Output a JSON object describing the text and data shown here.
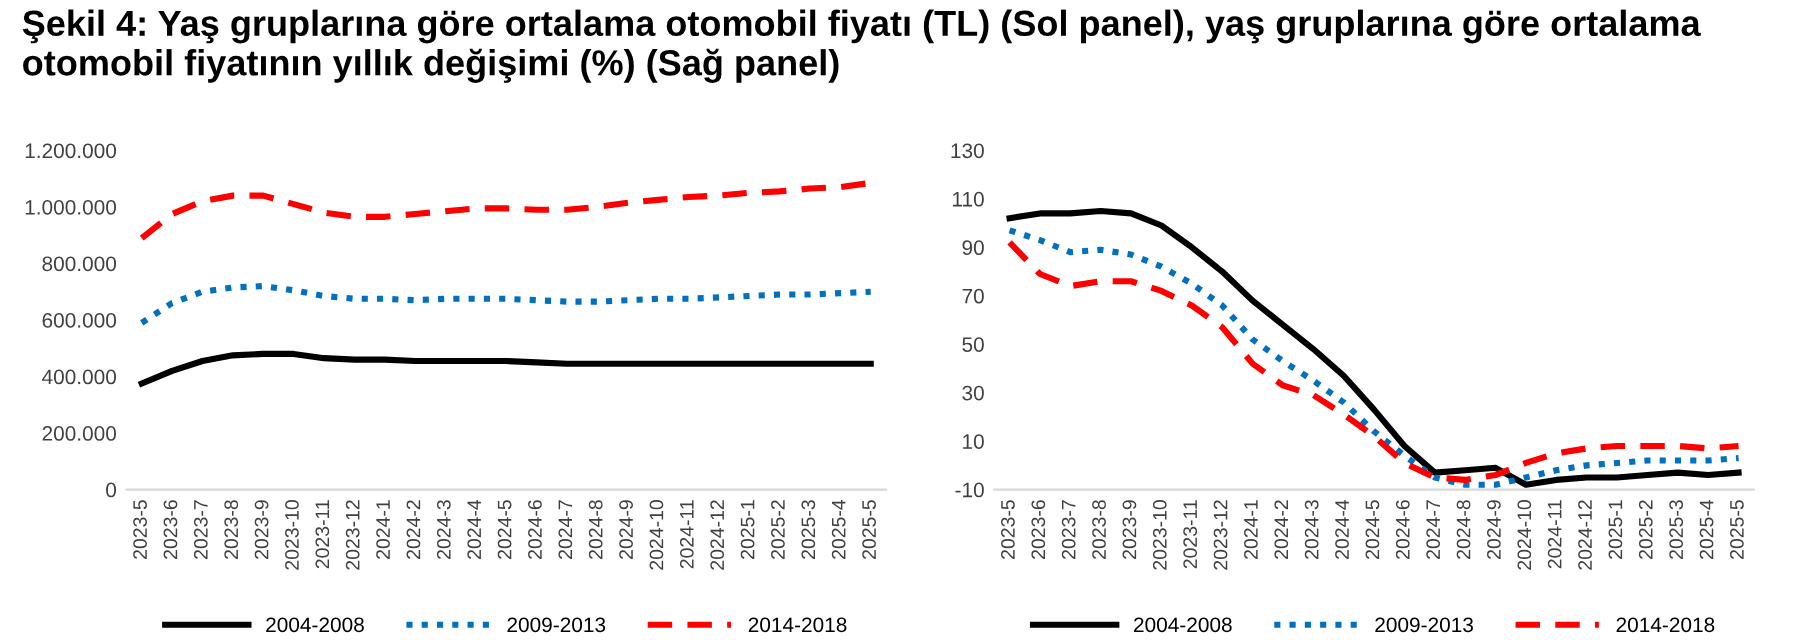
{
  "chart_data": [
    {
      "type": "line",
      "title": "Şekil 4: Yaş gruplarına göre ortalama otomobil fiyatı (TL) (Sol panel), yaş gruplarına göre ortalama otomobil fiyatının yıllık değişimi (%) (Sağ panel)",
      "categories": [
        "2023-5",
        "2023-6",
        "2023-7",
        "2023-8",
        "2023-9",
        "2023-10",
        "2023-11",
        "2023-12",
        "2024-1",
        "2024-2",
        "2024-3",
        "2024-4",
        "2024-5",
        "2024-6",
        "2024-7",
        "2024-8",
        "2024-9",
        "2024-10",
        "2024-11",
        "2024-12",
        "2025-1",
        "2025-2",
        "2025-3",
        "2025-4",
        "2025-5"
      ],
      "series": [
        {
          "name": "2004-2008",
          "color": "#000000",
          "line_style": "solid",
          "values": [
            375000,
            420000,
            455000,
            475000,
            480000,
            480000,
            465000,
            460000,
            460000,
            455000,
            455000,
            455000,
            455000,
            450000,
            445000,
            445000,
            445000,
            445000,
            445000,
            445000,
            445000,
            445000,
            445000,
            445000,
            445000
          ]
        },
        {
          "name": "2009-2013",
          "color": "#0070c0",
          "line_style": "dotted",
          "values": [
            590000,
            660000,
            700000,
            715000,
            720000,
            705000,
            685000,
            675000,
            675000,
            670000,
            675000,
            675000,
            675000,
            670000,
            665000,
            665000,
            670000,
            675000,
            675000,
            680000,
            685000,
            690000,
            690000,
            695000,
            700000
          ]
        },
        {
          "name": "2014-2018",
          "color": "#ff0000",
          "line_style": "dashed",
          "values": [
            890000,
            975000,
            1020000,
            1040000,
            1040000,
            1010000,
            980000,
            965000,
            965000,
            975000,
            985000,
            995000,
            995000,
            990000,
            990000,
            1000000,
            1015000,
            1025000,
            1035000,
            1040000,
            1050000,
            1055000,
            1065000,
            1070000,
            1085000
          ]
        }
      ],
      "ylim": [
        0,
        1200000
      ],
      "yticks": [
        0,
        {
          "value": 200000,
          "label": "200.000"
        },
        {
          "value": 400000,
          "label": "400.000"
        },
        {
          "value": 600000,
          "label": "600.000"
        },
        {
          "value": 800000,
          "label": "800.000"
        },
        {
          "value": 1000000,
          "label": "1.000.000"
        },
        {
          "value": 1200000,
          "label": "1.200.000"
        }
      ],
      "legend": "bottom"
    },
    {
      "type": "line",
      "categories": [
        "2023-5",
        "2023-6",
        "2023-7",
        "2023-8",
        "2023-9",
        "2023-10",
        "2023-11",
        "2023-12",
        "2024-1",
        "2024-2",
        "2024-3",
        "2024-4",
        "2024-5",
        "2024-6",
        "2024-7",
        "2024-8",
        "2024-9",
        "2024-10",
        "2024-11",
        "2024-12",
        "2025-1",
        "2025-2",
        "2025-3",
        "2025-4",
        "2025-5"
      ],
      "series": [
        {
          "name": "2004-2008",
          "color": "#000000",
          "line_style": "solid",
          "values": [
            102,
            104,
            104,
            105,
            104,
            99,
            90,
            80,
            68,
            58,
            48,
            37,
            23,
            8,
            -3,
            -2,
            -1,
            -8,
            -6,
            -5,
            -5,
            -4,
            -3,
            -4,
            -3
          ]
        },
        {
          "name": "2009-2013",
          "color": "#0070c0",
          "line_style": "dotted",
          "values": [
            97,
            93,
            88,
            89,
            87,
            82,
            75,
            66,
            52,
            43,
            35,
            26,
            14,
            4,
            -5,
            -8,
            -8,
            -5,
            -2,
            0,
            1,
            2,
            2,
            2,
            3
          ]
        },
        {
          "name": "2014-2018",
          "color": "#ff0000",
          "line_style": "dashed",
          "values": [
            92,
            79,
            74,
            76,
            76,
            72,
            66,
            57,
            42,
            33,
            29,
            21,
            12,
            1,
            -5,
            -6,
            -4,
            1,
            5,
            7,
            8,
            8,
            8,
            7,
            8
          ]
        }
      ],
      "ylim": [
        -10,
        130
      ],
      "yticks": [
        -10,
        10,
        30,
        50,
        70,
        90,
        110,
        130
      ],
      "legend": "bottom"
    }
  ]
}
